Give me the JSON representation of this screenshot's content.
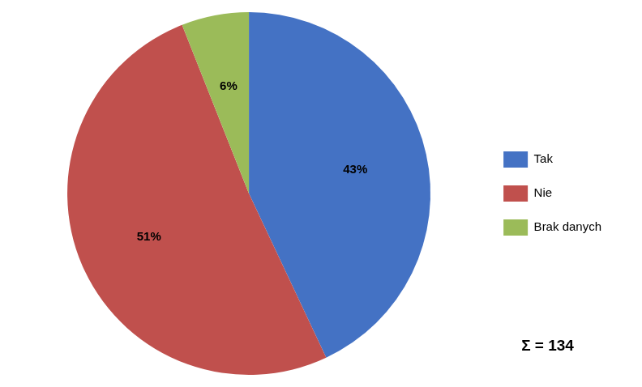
{
  "chart_data": {
    "type": "pie",
    "categories": [
      "Tak",
      "Nie",
      "Brak danych"
    ],
    "values": [
      43,
      51,
      6
    ],
    "value_labels": [
      "43%",
      "51%",
      "6%"
    ],
    "data_labels": true,
    "colors": [
      "#4472C4",
      "#C0504D",
      "#9BBB59"
    ],
    "legend": "right",
    "annotations": [
      "Σ = 134"
    ]
  }
}
